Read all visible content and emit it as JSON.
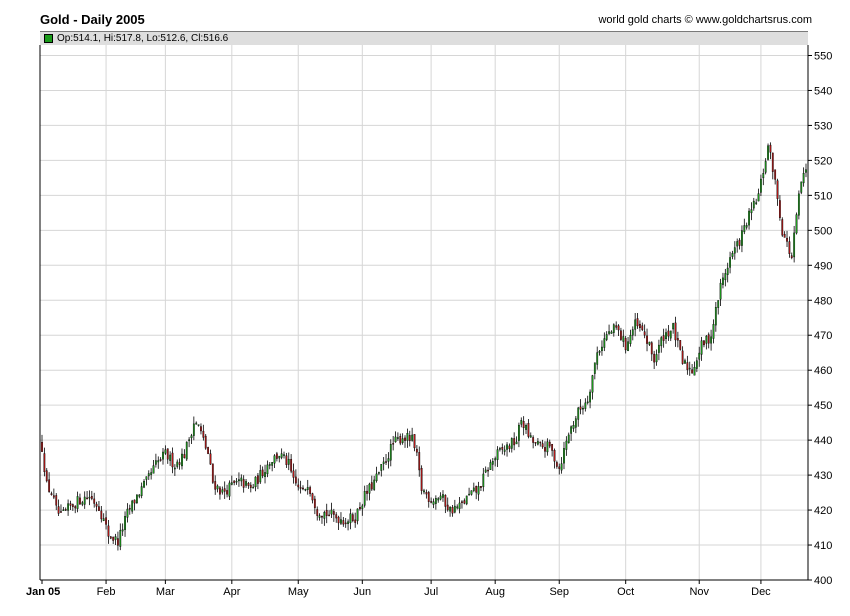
{
  "chart_data": {
    "type": "candlestick",
    "title": "Gold - Daily 2005",
    "source": "world gold charts © www.goldchartsrus.com",
    "ohlc_readout": "Op:514.1, Hi:517.8, Lo:512.6, Cl:516.6",
    "x_labels": [
      "Jan 05",
      "Feb",
      "Mar",
      "Apr",
      "May",
      "Jun",
      "Jul",
      "Aug",
      "Sep",
      "Oct",
      "Nov",
      "Dec"
    ],
    "ylim": [
      400,
      553
    ],
    "yticks": [
      400,
      410,
      420,
      430,
      440,
      450,
      460,
      470,
      480,
      490,
      500,
      510,
      520,
      530,
      540,
      550
    ],
    "grid": true,
    "colors": {
      "up": "#1e9e1e",
      "down": "#b31818",
      "wick": "#000000",
      "grid": "#d6d6d6"
    },
    "close_series": [
      [
        0,
        438
      ],
      [
        2,
        427
      ],
      [
        4,
        425
      ],
      [
        6,
        420
      ],
      [
        8,
        418
      ],
      [
        12,
        421
      ],
      [
        16,
        423
      ],
      [
        20,
        424
      ],
      [
        24,
        421
      ],
      [
        28,
        413
      ],
      [
        32,
        411
      ],
      [
        36,
        419
      ],
      [
        40,
        424
      ],
      [
        44,
        428
      ],
      [
        48,
        433
      ],
      [
        52,
        436
      ],
      [
        56,
        433
      ],
      [
        60,
        436
      ],
      [
        64,
        445
      ],
      [
        66,
        444
      ],
      [
        70,
        436
      ],
      [
        72,
        428
      ],
      [
        76,
        425
      ],
      [
        80,
        427
      ],
      [
        84,
        428
      ],
      [
        88,
        426
      ],
      [
        92,
        430
      ],
      [
        96,
        434
      ],
      [
        100,
        436
      ],
      [
        104,
        433
      ],
      [
        106,
        428
      ],
      [
        110,
        425
      ],
      [
        112,
        428
      ],
      [
        116,
        420
      ],
      [
        120,
        419
      ],
      [
        124,
        418
      ],
      [
        128,
        417
      ],
      [
        132,
        418
      ],
      [
        136,
        424
      ],
      [
        140,
        428
      ],
      [
        144,
        433
      ],
      [
        148,
        439
      ],
      [
        152,
        441
      ],
      [
        156,
        440
      ],
      [
        158,
        435
      ],
      [
        160,
        426
      ],
      [
        164,
        423
      ],
      [
        168,
        424
      ],
      [
        172,
        420
      ],
      [
        176,
        421
      ],
      [
        180,
        424
      ],
      [
        184,
        426
      ],
      [
        188,
        432
      ],
      [
        192,
        436
      ],
      [
        196,
        438
      ],
      [
        200,
        440
      ],
      [
        202,
        446
      ],
      [
        206,
        440
      ],
      [
        210,
        438
      ],
      [
        214,
        438
      ],
      [
        218,
        432
      ],
      [
        222,
        442
      ],
      [
        226,
        448
      ],
      [
        230,
        452
      ],
      [
        234,
        465
      ],
      [
        238,
        470
      ],
      [
        242,
        472
      ],
      [
        246,
        467
      ],
      [
        250,
        473
      ],
      [
        254,
        470
      ],
      [
        258,
        463
      ],
      [
        262,
        470
      ],
      [
        266,
        472
      ],
      [
        270,
        462
      ],
      [
        274,
        460
      ],
      [
        278,
        467
      ],
      [
        282,
        470
      ],
      [
        286,
        484
      ],
      [
        290,
        492
      ],
      [
        294,
        497
      ],
      [
        298,
        504
      ],
      [
        302,
        510
      ],
      [
        306,
        524
      ],
      [
        308,
        518
      ],
      [
        312,
        500
      ],
      [
        314,
        496
      ],
      [
        316,
        492
      ],
      [
        318,
        504
      ],
      [
        320,
        514
      ],
      [
        322,
        516.6
      ]
    ]
  }
}
